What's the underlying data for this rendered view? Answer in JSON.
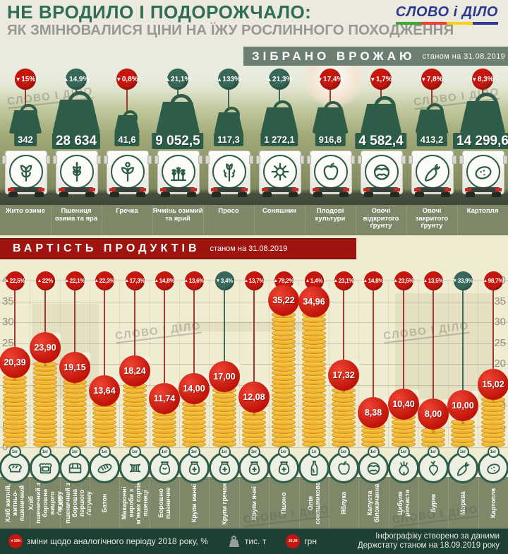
{
  "header": {
    "title": "НЕ ВРОДИЛО І ПОДОРОЖЧАЛО:",
    "subtitle": "ЯК ЗМІНЮВАЛИСЯ ЦІНИ НА ЇЖУ РОСЛИННОГО ПОХОДЖЕННЯ",
    "logo": "СЛОВО і ДІЛО"
  },
  "watermark_text": "СЛОВО І ДІЛО",
  "colors": {
    "title_green": "#2f6e52",
    "logo_blue": "#2b3990",
    "up_red": "#c6170f",
    "down_green": "#38685a",
    "dark_green": "#2d5c49",
    "banner_red": "#a01410",
    "coin_gold": "#eda921",
    "olive_band": "#7e8869",
    "footer_green": "#1e3f34"
  },
  "harvest": {
    "title": "ЗІБРАНО ВРОЖАЮ",
    "as_of": "станом на 31.08.2019",
    "unit": "тис. т",
    "items": [
      {
        "label": "Жито озиме",
        "value": "342",
        "change": "15%",
        "direction": "down",
        "icon": "rye-icon"
      },
      {
        "label": "Пшениця озима та яра",
        "value": "28 634",
        "change": "14,9%",
        "direction": "up",
        "icon": "wheat-icon"
      },
      {
        "label": "Гречка",
        "value": "41,6",
        "change": "0,8%",
        "direction": "down",
        "icon": "buckwheat-icon"
      },
      {
        "label": "Ячмінь озимий та ярий",
        "value": "9 052,5",
        "change": "21,1%",
        "direction": "up",
        "icon": "barley-icon"
      },
      {
        "label": "Просо",
        "value": "117,3",
        "change": "133%",
        "direction": "up",
        "icon": "millet-icon"
      },
      {
        "label": "Соняшник",
        "value": "1 272,1",
        "change": "21,3%",
        "direction": "up",
        "icon": "sunflower-icon"
      },
      {
        "label": "Плодові культури",
        "value": "916,8",
        "change": "17,4%",
        "direction": "down",
        "icon": "apple-icon"
      },
      {
        "label": "Овочі відкритого ґрунту",
        "value": "4 582,4",
        "change": "1,7%",
        "direction": "down",
        "icon": "cabbage-icon"
      },
      {
        "label": "Овочі закритого ґрунту",
        "value": "413,2",
        "change": "7,8%",
        "direction": "down",
        "icon": "carrot-icon"
      },
      {
        "label": "Картопля",
        "value": "14 299,6",
        "change": "8,3%",
        "direction": "down",
        "icon": "potato-icon"
      }
    ]
  },
  "prices": {
    "title": "ВАРТІСТЬ ПРОДУКТІВ",
    "as_of": "станом на 31.08.2019",
    "currency": "грн",
    "axis": {
      "min": 0,
      "max": 40,
      "step": 5
    },
    "items": [
      {
        "label": "Хліб житній, житньо-пшеничний",
        "price": "20,39",
        "change": "22,5%",
        "direction": "up",
        "unit": "1 кг",
        "icon": "bread-icon"
      },
      {
        "label": "Хліб пшеничний з борошна вищого ґатунку",
        "price": "23,90",
        "change": "22%",
        "direction": "up",
        "unit": "1 кг",
        "icon": "bread-slice-icon"
      },
      {
        "label": "Хліб пшеничний з борошна першого ґатунку",
        "price": "19,15",
        "change": "22,1%",
        "direction": "up",
        "unit": "1 кг",
        "icon": "dark-bread-icon"
      },
      {
        "label": "Батон",
        "price": "13,64",
        "change": "22,3%",
        "direction": "up",
        "unit": "1 кг",
        "icon": "baton-icon"
      },
      {
        "label": "Макаронні вироби з м'яких сортів пшениці",
        "price": "18,24",
        "change": "17,3%",
        "direction": "up",
        "unit": "1 кг",
        "icon": "pasta-icon"
      },
      {
        "label": "Борошно пшеничне",
        "price": "11,74",
        "change": "14,8%",
        "direction": "up",
        "unit": "1 кг",
        "icon": "flour-sack-icon"
      },
      {
        "label": "Крупи манні",
        "price": "14,00",
        "change": "13,6%",
        "direction": "up",
        "unit": "1 кг",
        "icon": "sack-icon"
      },
      {
        "label": "Крупи гречані",
        "price": "17,00",
        "change": "3,4%",
        "direction": "down",
        "unit": "1 кг",
        "icon": "sack-icon"
      },
      {
        "label": "Крупи ячні",
        "price": "12,08",
        "change": "13,7%",
        "direction": "up",
        "unit": "1 кг",
        "icon": "sack-icon"
      },
      {
        "label": "Пшоно",
        "price": "35,22",
        "change": "78,2%",
        "direction": "up",
        "unit": "1 кг",
        "icon": "sack-icon"
      },
      {
        "label": "Олія соняшникова",
        "price": "34,96",
        "change": "1,4%",
        "direction": "up",
        "unit": "1 л",
        "icon": "oil-bottle-icon"
      },
      {
        "label": "Яблука",
        "price": "17,32",
        "change": "23,1%",
        "direction": "up",
        "unit": "1 кг",
        "icon": "apple-icon"
      },
      {
        "label": "Капуста білокачанна",
        "price": "8,38",
        "change": "14,8%",
        "direction": "up",
        "unit": "1 кг",
        "icon": "cabbage-icon"
      },
      {
        "label": "Цибуля ріпчаста",
        "price": "10,40",
        "change": "23,5%",
        "direction": "up",
        "unit": "1 кг",
        "icon": "onion-icon"
      },
      {
        "label": "Буряк",
        "price": "8,00",
        "change": "13,5%",
        "direction": "up",
        "unit": "1 кг",
        "icon": "beet-icon"
      },
      {
        "label": "Морква",
        "price": "10,00",
        "change": "33,9%",
        "direction": "down",
        "unit": "1 кг",
        "icon": "carrot-icon"
      },
      {
        "label": "Картопля",
        "price": "15,02",
        "change": "98,7%",
        "direction": "up",
        "unit": "1 кг",
        "icon": "potato-icon"
      }
    ]
  },
  "footer": {
    "legend_change_icon": "▼15%",
    "legend_change_text": "зміни щодо аналогічного періоду 2018 року, %",
    "legend_weight_unit": "тис. т",
    "legend_price_icon": "20,39",
    "legend_price_unit": "грн",
    "credit_line1": "Інфографіку створено за даними",
    "credit_line2": "Держстату станом на 18.09.2019 року"
  },
  "chart_data": [
    {
      "type": "bar",
      "title": "ЗІБРАНО ВРОЖАЮ",
      "subtitle": "станом на 31.08.2019",
      "ylabel": "тис. т",
      "categories": [
        "Жито озиме",
        "Пшениця озима та яра",
        "Гречка",
        "Ячмінь озимий та ярий",
        "Просо",
        "Соняшник",
        "Плодові культури",
        "Овочі відкритого ґрунту",
        "Овочі закритого ґрунту",
        "Картопля"
      ],
      "values": [
        342,
        28634,
        41.6,
        9052.5,
        117.3,
        1272.1,
        916.8,
        4582.4,
        413.2,
        14299.6
      ],
      "change_pct_vs_2018": [
        -15,
        14.9,
        -0.8,
        21.1,
        133,
        21.3,
        -17.4,
        -1.7,
        -7.8,
        -8.3
      ]
    },
    {
      "type": "bar",
      "title": "ВАРТІСТЬ ПРОДУКТІВ",
      "subtitle": "станом на 31.08.2019",
      "ylabel": "грн",
      "ylim": [
        0,
        40
      ],
      "grid": true,
      "categories": [
        "Хліб житній, житньо-пшеничний",
        "Хліб пшеничний з борошна вищого ґатунку",
        "Хліб пшеничний з борошна першого ґатунку",
        "Батон",
        "Макаронні вироби з м'яких сортів пшениці",
        "Борошно пшеничне",
        "Крупи манні",
        "Крупи гречані",
        "Крупи ячні",
        "Пшоно",
        "Олія соняшникова",
        "Яблука",
        "Капуста білокачанна",
        "Цибуля ріпчаста",
        "Буряк",
        "Морква",
        "Картопля"
      ],
      "values": [
        20.39,
        23.9,
        19.15,
        13.64,
        18.24,
        11.74,
        14.0,
        17.0,
        12.08,
        35.22,
        34.96,
        17.32,
        8.38,
        10.4,
        8.0,
        10.0,
        15.02
      ],
      "change_pct_vs_2018": [
        22.5,
        22,
        22.1,
        22.3,
        17.3,
        14.8,
        13.6,
        -3.4,
        13.7,
        78.2,
        1.4,
        23.1,
        14.8,
        23.5,
        13.5,
        -33.9,
        98.7
      ]
    }
  ]
}
